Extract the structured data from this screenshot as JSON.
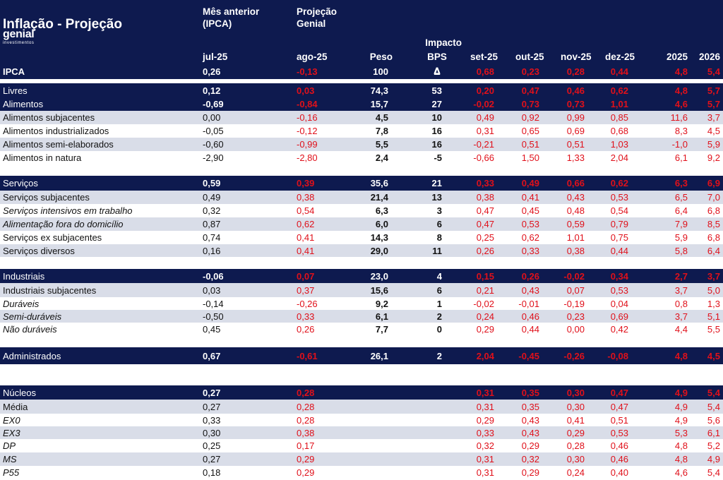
{
  "header": {
    "title": "Inflação - Projeção",
    "logo_word": "genial",
    "logo_sub": "investimentos",
    "col1_title_line1": "Mês anterior",
    "col1_title_line2": "(IPCA)",
    "col2_title_line1": "Projeção",
    "col2_title_line2": "Genial",
    "impacto_line1": "Impacto",
    "impacto_line2": "BPS",
    "impacto_line3": "Δ",
    "col1_month": "jul-25",
    "col2_month": "ago-25",
    "peso": "Peso",
    "set": "set-25",
    "out": "out-25",
    "nov": "nov-25",
    "dez": "dez-25",
    "y2025": "2025",
    "y2026": "2026"
  },
  "ipca_row": {
    "label": "IPCA",
    "m1": "0,26",
    "m2": "-0,13",
    "peso": "100",
    "set": "0,68",
    "out": "0,23",
    "nov": "0,28",
    "dez": "0,44",
    "y2025": "4,8",
    "y2026": "5,4"
  },
  "rows": [
    {
      "label": "Livres",
      "m1": "0,12",
      "m2": "0,03",
      "peso": "74,3",
      "bps": "53",
      "set": "0,20",
      "out": "0,47",
      "nov": "0,46",
      "dez": "0,62",
      "y2025": "4,8",
      "y2026": "5,7"
    },
    {
      "label": "Alimentos",
      "m1": "-0,69",
      "m2": "-0,84",
      "peso": "15,7",
      "bps": "27",
      "set": "-0,02",
      "out": "0,73",
      "nov": "0,73",
      "dez": "1,01",
      "y2025": "4,6",
      "y2026": "5,7"
    },
    {
      "label": "Alimentos subjacentes",
      "m1": "0,00",
      "m2": "-0,16",
      "peso": "4,5",
      "bps": "10",
      "set": "0,49",
      "out": "0,92",
      "nov": "0,99",
      "dez": "0,85",
      "y2025": "11,6",
      "y2026": "3,7"
    },
    {
      "label": "Alimentos industrializados",
      "m1": "-0,05",
      "m2": "-0,12",
      "peso": "7,8",
      "bps": "16",
      "set": "0,31",
      "out": "0,65",
      "nov": "0,69",
      "dez": "0,68",
      "y2025": "8,3",
      "y2026": "4,5"
    },
    {
      "label": "Alimentos semi-elaborados",
      "m1": "-0,60",
      "m2": "-0,99",
      "peso": "5,5",
      "bps": "16",
      "set": "-0,21",
      "out": "0,51",
      "nov": "0,51",
      "dez": "1,03",
      "y2025": "-1,0",
      "y2026": "5,9"
    },
    {
      "label": "Alimentos in natura",
      "m1": "-2,90",
      "m2": "-2,80",
      "peso": "2,4",
      "bps": "-5",
      "set": "-0,66",
      "out": "1,50",
      "nov": "1,33",
      "dez": "2,04",
      "y2025": "6,1",
      "y2026": "9,2"
    },
    {
      "label": "Serviços",
      "m1": "0,59",
      "m2": "0,39",
      "peso": "35,6",
      "bps": "21",
      "set": "0,33",
      "out": "0,49",
      "nov": "0,66",
      "dez": "0,62",
      "y2025": "6,3",
      "y2026": "6,9"
    },
    {
      "label": "Serviços subjacentes",
      "m1": "0,49",
      "m2": "0,38",
      "peso": "21,4",
      "bps": "13",
      "set": "0,38",
      "out": "0,41",
      "nov": "0,43",
      "dez": "0,53",
      "y2025": "6,5",
      "y2026": "7,0"
    },
    {
      "label": "Serviços intensivos em trabalho",
      "m1": "0,32",
      "m2": "0,54",
      "peso": "6,3",
      "bps": "3",
      "set": "0,47",
      "out": "0,45",
      "nov": "0,48",
      "dez": "0,54",
      "y2025": "6,4",
      "y2026": "6,8"
    },
    {
      "label": "Alimentação fora do domicílio",
      "m1": "0,87",
      "m2": "0,62",
      "peso": "6,0",
      "bps": "6",
      "set": "0,47",
      "out": "0,53",
      "nov": "0,59",
      "dez": "0,79",
      "y2025": "7,9",
      "y2026": "8,5"
    },
    {
      "label": "Serviços ex subjacentes",
      "m1": "0,74",
      "m2": "0,41",
      "peso": "14,3",
      "bps": "8",
      "set": "0,25",
      "out": "0,62",
      "nov": "1,01",
      "dez": "0,75",
      "y2025": "5,9",
      "y2026": "6,8"
    },
    {
      "label": "Serviços diversos",
      "m1": "0,16",
      "m2": "0,41",
      "peso": "29,0",
      "bps": "11",
      "set": "0,26",
      "out": "0,33",
      "nov": "0,38",
      "dez": "0,44",
      "y2025": "5,8",
      "y2026": "6,4"
    },
    {
      "label": "Industriais",
      "m1": "-0,06",
      "m2": "0,07",
      "peso": "23,0",
      "bps": "4",
      "set": "0,15",
      "out": "0,26",
      "nov": "-0,02",
      "dez": "0,34",
      "y2025": "2,7",
      "y2026": "3,7"
    },
    {
      "label": "Industriais subjacentes",
      "m1": "0,03",
      "m2": "0,37",
      "peso": "15,6",
      "bps": "6",
      "set": "0,21",
      "out": "0,43",
      "nov": "0,07",
      "dez": "0,53",
      "y2025": "3,7",
      "y2026": "5,0"
    },
    {
      "label": "Duráveis",
      "m1": "-0,14",
      "m2": "-0,26",
      "peso": "9,2",
      "bps": "1",
      "set": "-0,02",
      "out": "-0,01",
      "nov": "-0,19",
      "dez": "0,04",
      "y2025": "0,8",
      "y2026": "1,3"
    },
    {
      "label": "Semi-duráveis",
      "m1": "-0,50",
      "m2": "0,33",
      "peso": "6,1",
      "bps": "2",
      "set": "0,24",
      "out": "0,46",
      "nov": "0,23",
      "dez": "0,69",
      "y2025": "3,7",
      "y2026": "5,1"
    },
    {
      "label": "Não duráveis",
      "m1": "0,45",
      "m2": "0,26",
      "peso": "7,7",
      "bps": "0",
      "set": "0,29",
      "out": "0,44",
      "nov": "0,00",
      "dez": "0,42",
      "y2025": "4,4",
      "y2026": "5,5"
    },
    {
      "label": "Administrados",
      "m1": "0,67",
      "m2": "-0,61",
      "peso": "26,1",
      "bps": "2",
      "set": "2,04",
      "out": "-0,45",
      "nov": "-0,26",
      "dez": "-0,08",
      "y2025": "4,8",
      "y2026": "4,5"
    },
    {
      "label": "Núcleos",
      "m1": "0,27",
      "m2": "0,28",
      "peso": "",
      "bps": "",
      "set": "0,31",
      "out": "0,35",
      "nov": "0,30",
      "dez": "0,47",
      "y2025": "4,9",
      "y2026": "5,4"
    },
    {
      "label": "Média",
      "m1": "0,27",
      "m2": "0,28",
      "peso": "",
      "bps": "",
      "set": "0,31",
      "out": "0,35",
      "nov": "0,30",
      "dez": "0,47",
      "y2025": "4,9",
      "y2026": "5,4"
    },
    {
      "label": "EX0",
      "m1": "0,33",
      "m2": "0,28",
      "peso": "",
      "bps": "",
      "set": "0,29",
      "out": "0,43",
      "nov": "0,41",
      "dez": "0,51",
      "y2025": "4,9",
      "y2026": "5,6"
    },
    {
      "label": "EX3",
      "m1": "0,30",
      "m2": "0,38",
      "peso": "",
      "bps": "",
      "set": "0,33",
      "out": "0,43",
      "nov": "0,29",
      "dez": "0,53",
      "y2025": "5,3",
      "y2026": "6,1"
    },
    {
      "label": "DP",
      "m1": "0,25",
      "m2": "0,17",
      "peso": "",
      "bps": "",
      "set": "0,32",
      "out": "0,29",
      "nov": "0,28",
      "dez": "0,46",
      "y2025": "4,8",
      "y2026": "5,2"
    },
    {
      "label": "MS",
      "m1": "0,27",
      "m2": "0,29",
      "peso": "",
      "bps": "",
      "set": "0,31",
      "out": "0,32",
      "nov": "0,30",
      "dez": "0,46",
      "y2025": "4,8",
      "y2026": "4,9"
    },
    {
      "label": "P55",
      "m1": "0,18",
      "m2": "0,29",
      "peso": "",
      "bps": "",
      "set": "0,31",
      "out": "0,29",
      "nov": "0,24",
      "dez": "0,40",
      "y2025": "4,6",
      "y2026": "5,4"
    }
  ]
}
